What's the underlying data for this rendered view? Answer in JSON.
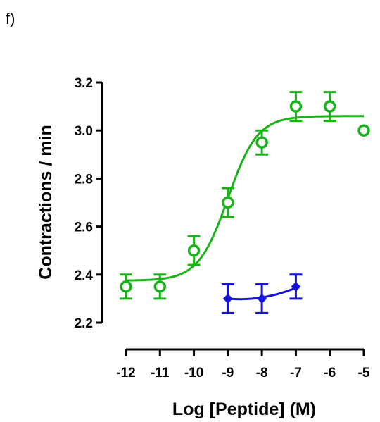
{
  "panel_label": "f)",
  "chart_data": {
    "type": "scatter",
    "title": "",
    "xlabel": "Log [Peptide] (M)",
    "ylabel": "Contractions / min",
    "xlim": [
      -12,
      -5
    ],
    "ylim": [
      2.2,
      3.2
    ],
    "xticks": [
      -12,
      -11,
      -10,
      -9,
      -8,
      -7,
      -6,
      -5
    ],
    "xtick_labels": [
      "-12",
      "-11",
      "-10",
      "-9",
      "-8",
      "-7",
      "-6",
      "-5"
    ],
    "yticks": [
      2.2,
      2.4,
      2.6,
      2.8,
      3.0,
      3.2
    ],
    "ytick_labels": [
      "2.2",
      "2.4",
      "2.6",
      "2.8",
      "3.0",
      "3.2"
    ],
    "grid": false,
    "legend": "none",
    "series": [
      {
        "color": "#19b319",
        "marker": "open-circle",
        "x": [
          -12,
          -11,
          -10,
          -9,
          -8,
          -7,
          -6,
          -5
        ],
        "y": [
          2.35,
          2.35,
          2.5,
          2.7,
          2.95,
          3.1,
          3.1,
          3.0
        ],
        "err": [
          0.05,
          0.05,
          0.06,
          0.06,
          0.05,
          0.06,
          0.06,
          0
        ],
        "fit": {
          "type": "sigmoid",
          "bottom": 2.375,
          "top": 3.06,
          "log_ec50": -9.0,
          "hill": 1.0,
          "x_range": [
            -12,
            -5
          ]
        }
      },
      {
        "color": "#1414dc",
        "marker": "filled-diamond",
        "x": [
          -9,
          -8,
          -7
        ],
        "y": [
          2.3,
          2.3,
          2.35
        ],
        "err": [
          0.06,
          0.06,
          0.05
        ],
        "fit": {
          "type": "smooth",
          "x_range": [
            -9,
            -7
          ],
          "y": [
            2.3,
            2.305,
            2.345
          ]
        }
      }
    ]
  }
}
